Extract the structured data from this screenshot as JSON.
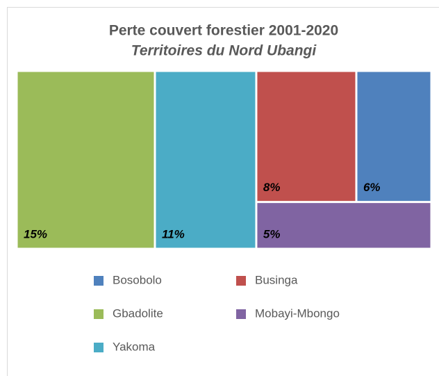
{
  "chart_data": {
    "type": "treemap",
    "title": "Perte couvert forestier 2001-2020",
    "subtitle": "Territoires du Nord Ubangi",
    "series": [
      {
        "name": "Bosobolo",
        "color": "#4f81bd",
        "values": [
          6
        ],
        "value_labels": [
          "6%"
        ]
      },
      {
        "name": "Businga",
        "color": "#c0504d",
        "values": [
          8
        ],
        "value_labels": [
          "8%"
        ]
      },
      {
        "name": "Gbadolite",
        "color": "#9bbb59",
        "values": [
          15
        ],
        "value_labels": [
          "15%"
        ]
      },
      {
        "name": "Mobayi-Mbongo",
        "color": "#8064a2",
        "values": [
          5
        ],
        "value_labels": [
          "5%"
        ]
      },
      {
        "name": "Yakoma",
        "color": "#4bacc6",
        "values": [
          11
        ],
        "value_labels": [
          "11%"
        ]
      }
    ]
  }
}
